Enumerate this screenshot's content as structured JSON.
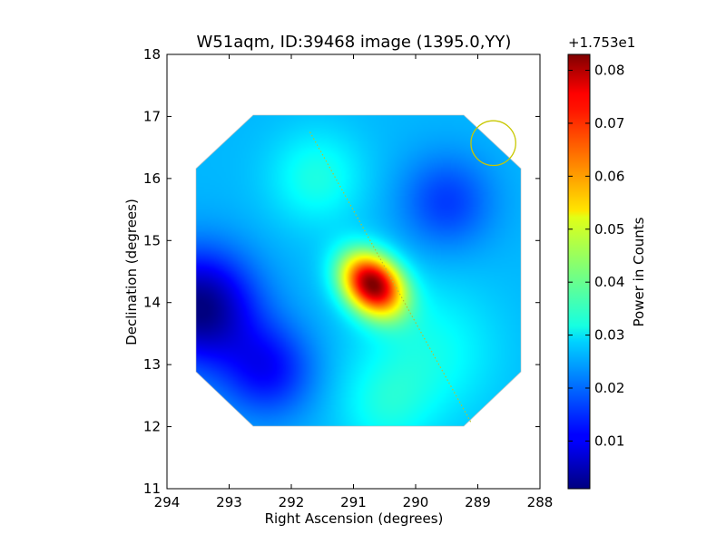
{
  "chart_data": {
    "type": "heatmap",
    "title": "W51aqm, ID:39468 image (1395.0,YY)",
    "xlabel": "Right Ascension (degrees)",
    "ylabel": "Declination (degrees)",
    "xlim": [
      294,
      288
    ],
    "ylim": [
      11,
      18
    ],
    "x_ticks": [
      294,
      293,
      292,
      291,
      290,
      289,
      288
    ],
    "x_tick_labels": [
      "294",
      "293",
      "292",
      "291",
      "290",
      "289",
      "288"
    ],
    "y_ticks": [
      11,
      12,
      13,
      14,
      15,
      16,
      17,
      18
    ],
    "y_tick_labels": [
      "11",
      "12",
      "13",
      "14",
      "15",
      "16",
      "17",
      "18"
    ],
    "image_extent": {
      "ra": [
        293.55,
        288.3
      ],
      "dec": [
        12.0,
        17.0
      ]
    },
    "colorbar": {
      "label": "Power in Counts",
      "offset_label": "+1.753e1",
      "range": [
        0.001,
        0.083
      ],
      "ticks": [
        0.01,
        0.02,
        0.03,
        0.04,
        0.05,
        0.06,
        0.07,
        0.08
      ],
      "tick_labels": [
        "0.01",
        "0.02",
        "0.03",
        "0.04",
        "0.05",
        "0.06",
        "0.07",
        "0.08"
      ],
      "colormap": "jet"
    },
    "background_value": 0.026,
    "features": [
      {
        "name": "peak",
        "ra": 290.7,
        "dec": 14.28,
        "value": 0.082
      },
      {
        "name": "northern-lobe",
        "ra": 291.6,
        "dec": 16.0,
        "value": 0.034
      },
      {
        "name": "eastern-minimum",
        "ra": 293.5,
        "dec": 13.9,
        "value": 0.001
      },
      {
        "name": "south-east-minimum",
        "ra": 292.4,
        "dec": 12.9,
        "value": 0.012
      },
      {
        "name": "north-west-minimum",
        "ra": 289.5,
        "dec": 15.6,
        "value": 0.016
      },
      {
        "name": "south-west-plateau",
        "ra": 289.8,
        "dec": 13.2,
        "value": 0.033
      },
      {
        "name": "southern-knob",
        "ra": 290.5,
        "dec": 12.3,
        "value": 0.032
      }
    ],
    "annotations": {
      "circle": {
        "ra": 288.75,
        "dec": 16.57,
        "radius_deg": 0.36,
        "color": "#c8c800"
      },
      "dotted_line": {
        "from": {
          "ra": 291.7,
          "dec": 16.75
        },
        "to": {
          "ra": 289.1,
          "dec": 12.05
        },
        "color": "#b8c030"
      }
    }
  }
}
